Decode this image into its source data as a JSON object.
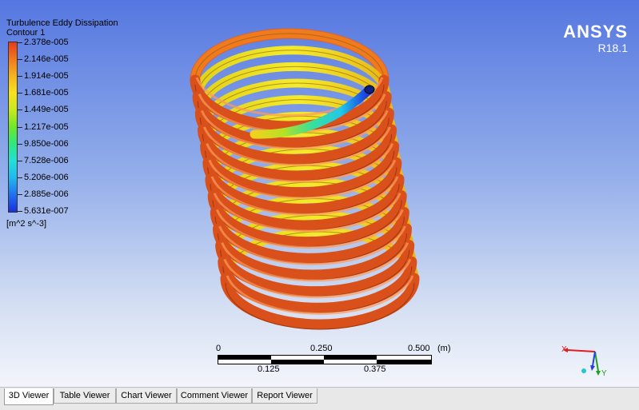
{
  "legend": {
    "variable": "Turbulence Eddy Dissipation",
    "contour_name": "Contour 1",
    "levels": [
      "2.378e-005",
      "2.146e-005",
      "1.914e-005",
      "1.681e-005",
      "1.449e-005",
      "1.217e-005",
      "9.850e-006",
      "7.528e-006",
      "5.206e-006",
      "2.885e-006",
      "5.631e-007"
    ],
    "units": "[m^2 s^-3]"
  },
  "logo": {
    "brand": "ANSYS",
    "version": "R18.1"
  },
  "scale_bar": {
    "top_labels": [
      "0",
      "0.250",
      "0.500"
    ],
    "unit": "(m)",
    "bottom_labels": [
      "0.125",
      "0.375"
    ]
  },
  "triad": {
    "x_label": "X",
    "y_label": "Y",
    "colors": {
      "x": "#e02020",
      "y": "#20a020",
      "z": "#2040e0"
    }
  },
  "tabs": [
    {
      "label": "3D Viewer",
      "active": true
    },
    {
      "label": "Table Viewer",
      "active": false
    },
    {
      "label": "Chart Viewer",
      "active": false
    },
    {
      "label": "Comment Viewer",
      "active": false
    },
    {
      "label": "Report Viewer",
      "active": false
    }
  ]
}
